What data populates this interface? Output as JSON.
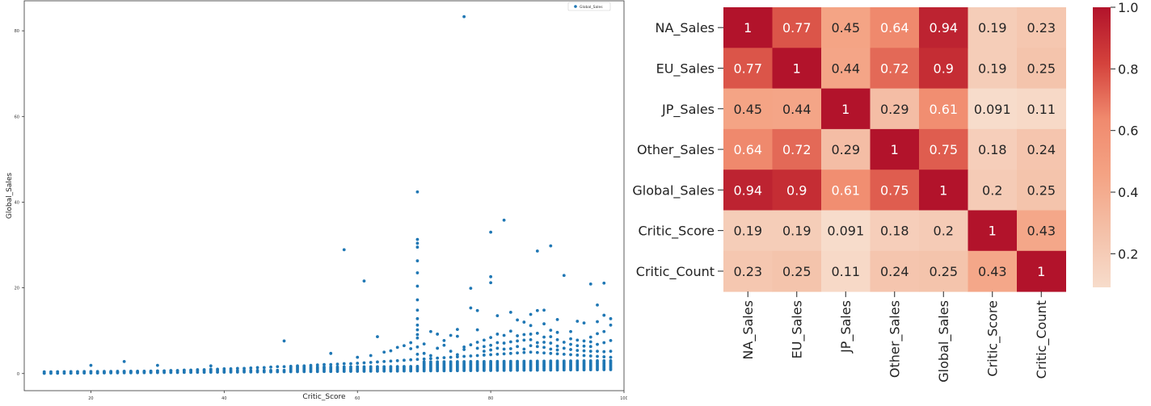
{
  "chart_data": [
    {
      "type": "scatter",
      "xlabel": "Critic_Score",
      "ylabel": "Global_Sales",
      "xlim": [
        10,
        100
      ],
      "ylim": [
        -4,
        87
      ],
      "xticks": [
        20,
        40,
        60,
        80,
        100
      ],
      "yticks": [
        0,
        20,
        40,
        60,
        80
      ],
      "legend": {
        "placement": "top-right",
        "entries": [
          "Global_Sales"
        ]
      },
      "grid": false,
      "color": "#1f77b4",
      "x": [
        13,
        17,
        19,
        20,
        21,
        22,
        23,
        24,
        25,
        25,
        26,
        27,
        28,
        29,
        30,
        30,
        31,
        32,
        33,
        34,
        35,
        36,
        37,
        38,
        38,
        39,
        40,
        41,
        42,
        43,
        44,
        45,
        46,
        47,
        48,
        49,
        49,
        50,
        51,
        52,
        53,
        54,
        55,
        56,
        56,
        57,
        58,
        58,
        59,
        60,
        60,
        61,
        61,
        62,
        62,
        63,
        63,
        64,
        64,
        65,
        65,
        66,
        66,
        67,
        67,
        68,
        68,
        68,
        69,
        69,
        69,
        69,
        69,
        69,
        69,
        69,
        69,
        69,
        69,
        69,
        69,
        69,
        69,
        69,
        69,
        70,
        70,
        70,
        71,
        71,
        71,
        72,
        72,
        72,
        73,
        73,
        73,
        74,
        74,
        74,
        75,
        75,
        75,
        75,
        76,
        76,
        76,
        76,
        77,
        77,
        77,
        77,
        78,
        78,
        78,
        78,
        78,
        79,
        79,
        79,
        79,
        80,
        80,
        80,
        80,
        80,
        80,
        80,
        81,
        81,
        81,
        81,
        81,
        82,
        82,
        82,
        82,
        82,
        83,
        83,
        83,
        83,
        83,
        84,
        84,
        84,
        84,
        84,
        85,
        85,
        85,
        85,
        85,
        86,
        86,
        86,
        86,
        86,
        86,
        87,
        87,
        87,
        87,
        87,
        87,
        88,
        88,
        88,
        88,
        88,
        88,
        89,
        89,
        89,
        89,
        89,
        89,
        90,
        90,
        90,
        90,
        90,
        90,
        91,
        91,
        91,
        91,
        92,
        92,
        92,
        92,
        92,
        93,
        93,
        93,
        93,
        93,
        94,
        94,
        94,
        94,
        94,
        95,
        95,
        95,
        95,
        95,
        95,
        96,
        96,
        96,
        96,
        96,
        96,
        97,
        97,
        97,
        97,
        97,
        97,
        98,
        98,
        98,
        98,
        98
      ],
      "y": [
        0.1,
        0.1,
        0.2,
        1.9,
        0.2,
        0.2,
        0.3,
        0.3,
        0.5,
        2.8,
        0.4,
        0.4,
        0.5,
        0.5,
        0.6,
        1.9,
        0.6,
        0.7,
        0.7,
        0.8,
        0.8,
        0.9,
        0.9,
        1,
        1.8,
        1,
        1.1,
        1.1,
        1.2,
        1.2,
        1.3,
        1.4,
        1.4,
        1.5,
        1.6,
        1.6,
        7.6,
        1.7,
        1.8,
        1.8,
        1.9,
        2,
        2.1,
        2.1,
        4.7,
        2.2,
        2.3,
        28.9,
        2.3,
        2.4,
        3.8,
        2.5,
        21.6,
        2.6,
        4.2,
        2.7,
        8.6,
        2.8,
        5,
        2.9,
        5.3,
        3,
        6.1,
        3.1,
        6.5,
        3.2,
        5.8,
        7.2,
        3.3,
        4.5,
        6.2,
        8.3,
        10.2,
        11.3,
        12.8,
        14.8,
        17.2,
        20.4,
        23.5,
        26.3,
        29.5,
        30.4,
        31.3,
        42.4,
        9.1,
        3.4,
        4.7,
        6.9,
        3.5,
        4.2,
        9.8,
        3.6,
        5.9,
        9.2,
        3.7,
        6.6,
        7.7,
        3.8,
        5.2,
        8.9,
        3.9,
        4.4,
        8.7,
        10.3,
        4,
        5.6,
        6.2,
        83.3,
        4.1,
        6.7,
        15.3,
        19.9,
        4.2,
        5.9,
        7.3,
        10.2,
        14.7,
        4.3,
        5.2,
        6.3,
        7.8,
        4.4,
        5.5,
        6.6,
        8.4,
        21.2,
        22.6,
        33,
        4.5,
        5.9,
        7.2,
        9.2,
        13.5,
        4.6,
        5.7,
        7.1,
        8.9,
        35.8,
        4.7,
        5.8,
        7.4,
        9.9,
        14.3,
        4.8,
        6.3,
        7.6,
        8.8,
        12.5,
        4.9,
        5.7,
        7.8,
        9.1,
        12,
        5,
        6.5,
        7.9,
        9.2,
        11.2,
        13.8,
        4.9,
        6.3,
        7.2,
        9.4,
        14.7,
        28.6,
        4.8,
        6.1,
        7.3,
        8.5,
        11.6,
        14.8,
        4.7,
        5.7,
        7.1,
        8.6,
        10.1,
        29.8,
        4.6,
        5.5,
        6.4,
        7.9,
        9.6,
        12.6,
        4.5,
        5.9,
        7.3,
        22.9,
        4.4,
        5.6,
        6.8,
        8.1,
        9.8,
        4.3,
        5.4,
        6.5,
        7.8,
        12.2,
        4.2,
        5.3,
        6.4,
        7.6,
        11.8,
        4.1,
        5.2,
        6.3,
        7.4,
        8.5,
        20.9,
        4,
        5.2,
        6.8,
        9.3,
        12.1,
        16,
        3.9,
        5.1,
        7.2,
        9.8,
        13.6,
        21.1,
        3.8,
        5.2,
        7.7,
        11.3,
        12.8
      ]
    },
    {
      "type": "heatmap",
      "rows": [
        "NA_Sales",
        "EU_Sales",
        "JP_Sales",
        "Other_Sales",
        "Global_Sales",
        "Critic_Score",
        "Critic_Count"
      ],
      "columns": [
        "NA_Sales",
        "EU_Sales",
        "JP_Sales",
        "Other_Sales",
        "Global_Sales",
        "Critic_Score",
        "Critic_Count"
      ],
      "values": [
        [
          1,
          0.77,
          0.45,
          0.64,
          0.94,
          0.19,
          0.23
        ],
        [
          0.77,
          1,
          0.44,
          0.72,
          0.9,
          0.19,
          0.25
        ],
        [
          0.45,
          0.44,
          1,
          0.29,
          0.61,
          0.091,
          0.11
        ],
        [
          0.64,
          0.72,
          0.29,
          1,
          0.75,
          0.18,
          0.24
        ],
        [
          0.94,
          0.9,
          0.61,
          0.75,
          1,
          0.2,
          0.25
        ],
        [
          0.19,
          0.19,
          0.091,
          0.18,
          0.2,
          1,
          0.43
        ],
        [
          0.23,
          0.25,
          0.11,
          0.24,
          0.25,
          0.43,
          1
        ]
      ],
      "labels": [
        [
          "1",
          "0.77",
          "0.45",
          "0.64",
          "0.94",
          "0.19",
          "0.23"
        ],
        [
          "0.77",
          "1",
          "0.44",
          "0.72",
          "0.9",
          "0.19",
          "0.25"
        ],
        [
          "0.45",
          "0.44",
          "1",
          "0.29",
          "0.61",
          "0.091",
          "0.11"
        ],
        [
          "0.64",
          "0.72",
          "0.29",
          "1",
          "0.75",
          "0.18",
          "0.24"
        ],
        [
          "0.94",
          "0.9",
          "0.61",
          "0.75",
          "1",
          "0.2",
          "0.25"
        ],
        [
          "0.19",
          "0.19",
          "0.091",
          "0.18",
          "0.2",
          "1",
          "0.43"
        ],
        [
          "0.23",
          "0.25",
          "0.11",
          "0.24",
          "0.25",
          "0.43",
          "1"
        ]
      ],
      "colormap": "Reds",
      "vmin": 0.091,
      "vmax": 1,
      "colorbar_ticks": [
        {
          "value": 1.0,
          "label": "1.0"
        },
        {
          "value": 0.8,
          "label": "0.8"
        },
        {
          "value": 0.6,
          "label": "0.6"
        },
        {
          "value": 0.4,
          "label": "0.4"
        },
        {
          "value": 0.2,
          "label": "0.2"
        }
      ],
      "colors": {
        "low": "#f7dccb",
        "mid": "#f08a6e",
        "high": "#b2132b"
      }
    }
  ]
}
